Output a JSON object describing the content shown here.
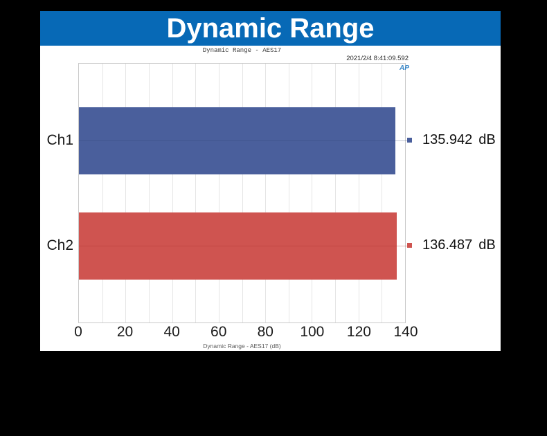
{
  "header": {
    "title": "Dynamic Range"
  },
  "subtitle": "Dynamic Range - AES17",
  "timestamp": "2021/2/4 8:41:09.592",
  "logo_text": "AP",
  "colors": {
    "banner": "#0769B6",
    "ch1_bar": "#4A5F9C",
    "ch2_bar": "#CF5450",
    "ch1_trace": "rgba(45,62,110,0.30)",
    "ch2_trace": "rgba(170,45,42,0.35)"
  },
  "chart_data": {
    "type": "bar",
    "orientation": "horizontal",
    "title": "Dynamic Range - AES17",
    "xlabel": "Dynamic Range - AES17 (dB)",
    "categories": [
      "Ch1",
      "Ch2"
    ],
    "values": [
      135.942,
      136.487
    ],
    "value_strings": [
      "135.942",
      "136.487"
    ],
    "unit": "dB",
    "series_colors": [
      "#4A5F9C",
      "#CF5450"
    ],
    "xlim": [
      0,
      140
    ],
    "xticks": [
      0,
      20,
      40,
      60,
      80,
      100,
      120,
      140
    ],
    "minor_grid_step": 10,
    "grid": "vertical-minor-on",
    "legend_position": "none"
  }
}
